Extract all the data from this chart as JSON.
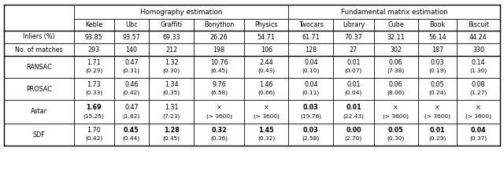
{
  "col_headers_sub": [
    "",
    "Keble",
    "Ubc",
    "Graffiti",
    "Bonython",
    "Physics",
    "Twocars",
    "Library",
    "Cube",
    "Book",
    "Biscuit"
  ],
  "data_rows": [
    {
      "label": "Inliers (%)",
      "values": [
        "93.85",
        "93.57",
        "69.33",
        "26.26",
        "54.71",
        "61.71",
        "70.37",
        "32.11",
        "56.14",
        "44.24"
      ],
      "bold_top": [
        false,
        false,
        false,
        false,
        false,
        false,
        false,
        false,
        false,
        false
      ],
      "two_line": false
    },
    {
      "label": "No. of matches",
      "values": [
        "293",
        "140",
        "212",
        "198",
        "106",
        "128",
        "27",
        "302",
        "187",
        "330"
      ],
      "bold_top": [
        false,
        false,
        false,
        false,
        false,
        false,
        false,
        false,
        false,
        false
      ],
      "two_line": false
    },
    {
      "label": "RANSAC",
      "top": [
        "1.71",
        "0.47",
        "1.32",
        "10.76",
        "2.44",
        "0.04",
        "0.01",
        "0.06",
        "0.03",
        "0.14"
      ],
      "bot": [
        "(0.29)",
        "(0.31)",
        "(0.30)",
        "(6.45)",
        "(0.43)",
        "(0.10)",
        "(0.07)",
        "(7.38)",
        "(0.19)",
        "(1.30)"
      ],
      "bold_top": [
        false,
        false,
        false,
        false,
        false,
        false,
        false,
        false,
        false,
        false
      ],
      "two_line": true
    },
    {
      "label": "PROSAC",
      "top": [
        "1.73",
        "0.46",
        "1.34",
        "9.76",
        "1.46",
        "0.04",
        "0.01",
        "0.06",
        "0.05",
        "0.08"
      ],
      "bot": [
        "(0.33)",
        "(0.42)",
        "(0.35)",
        "(6.58)",
        "(0.66)",
        "(0.11)",
        "(0.04)",
        "(8.06)",
        "(0.24)",
        "(1.27)"
      ],
      "bold_top": [
        false,
        false,
        false,
        false,
        false,
        false,
        false,
        false,
        false,
        false
      ],
      "two_line": true
    },
    {
      "label": "Astar",
      "top": [
        "1.69",
        "0.47",
        "1.31",
        "×",
        "×",
        "0.03",
        "0.01",
        "×",
        "×",
        "×"
      ],
      "bot": [
        "(15.25)",
        "(1.82)",
        "(7.23)",
        "(> 3600)",
        "(> 3600)",
        "(19.76)",
        "(22.43)",
        "(> 3600)",
        "(> 3600)",
        "(> 3600)"
      ],
      "bold_top": [
        true,
        false,
        false,
        false,
        false,
        true,
        true,
        false,
        false,
        false
      ],
      "two_line": true
    },
    {
      "label": "SDF",
      "top": [
        "1.70",
        "0.45",
        "1.28",
        "0.32",
        "1.45",
        "0.03",
        "0.00",
        "0.05",
        "0.01",
        "0.04"
      ],
      "bot": [
        "(0.42)",
        "(0.44)",
        "(0.45)",
        "(0.36)",
        "(0.32)",
        "(2.58)",
        "(2.70)",
        "(0.30)",
        "(0.29)",
        "(0.37)"
      ],
      "bold_top": [
        false,
        true,
        true,
        true,
        true,
        true,
        true,
        true,
        true,
        true
      ],
      "two_line": true
    }
  ],
  "figsize": [
    6.4,
    2.16
  ],
  "dpi": 100,
  "font_size": 5.8,
  "header_font_size": 6.2
}
